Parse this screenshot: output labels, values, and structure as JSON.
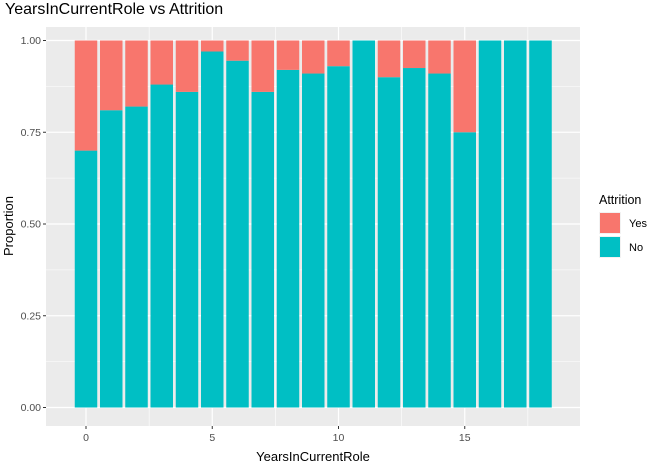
{
  "chart_data": {
    "type": "bar",
    "stacked": true,
    "title": "YearsInCurrentRole vs Attrition",
    "xlabel": "YearsInCurrentRole",
    "ylabel": "Proportion",
    "x": [
      0,
      1,
      2,
      3,
      4,
      5,
      6,
      7,
      8,
      9,
      10,
      11,
      12,
      13,
      14,
      15,
      16,
      17,
      18
    ],
    "x_ticks": [
      "0",
      "5",
      "10",
      "15"
    ],
    "y_ticks": [
      "0.00",
      "0.25",
      "0.50",
      "0.75",
      "1.00"
    ],
    "ylim": [
      0,
      1
    ],
    "series": [
      {
        "name": "No",
        "color": "#00BFC4",
        "values": [
          0.7,
          0.81,
          0.82,
          0.88,
          0.86,
          0.97,
          0.945,
          0.86,
          0.92,
          0.91,
          0.93,
          1.0,
          0.9,
          0.925,
          0.91,
          0.75,
          1.0,
          1.0,
          1.0
        ]
      },
      {
        "name": "Yes",
        "color": "#F8766D",
        "values": [
          0.3,
          0.19,
          0.18,
          0.12,
          0.14,
          0.03,
          0.055,
          0.14,
          0.08,
          0.09,
          0.07,
          0.0,
          0.1,
          0.075,
          0.09,
          0.25,
          0.0,
          0.0,
          0.0
        ]
      }
    ],
    "grid": true,
    "panel_background": "#EBEBEB",
    "legend": {
      "title": "Attrition",
      "position": "right",
      "entries": [
        "Yes",
        "No"
      ]
    }
  }
}
